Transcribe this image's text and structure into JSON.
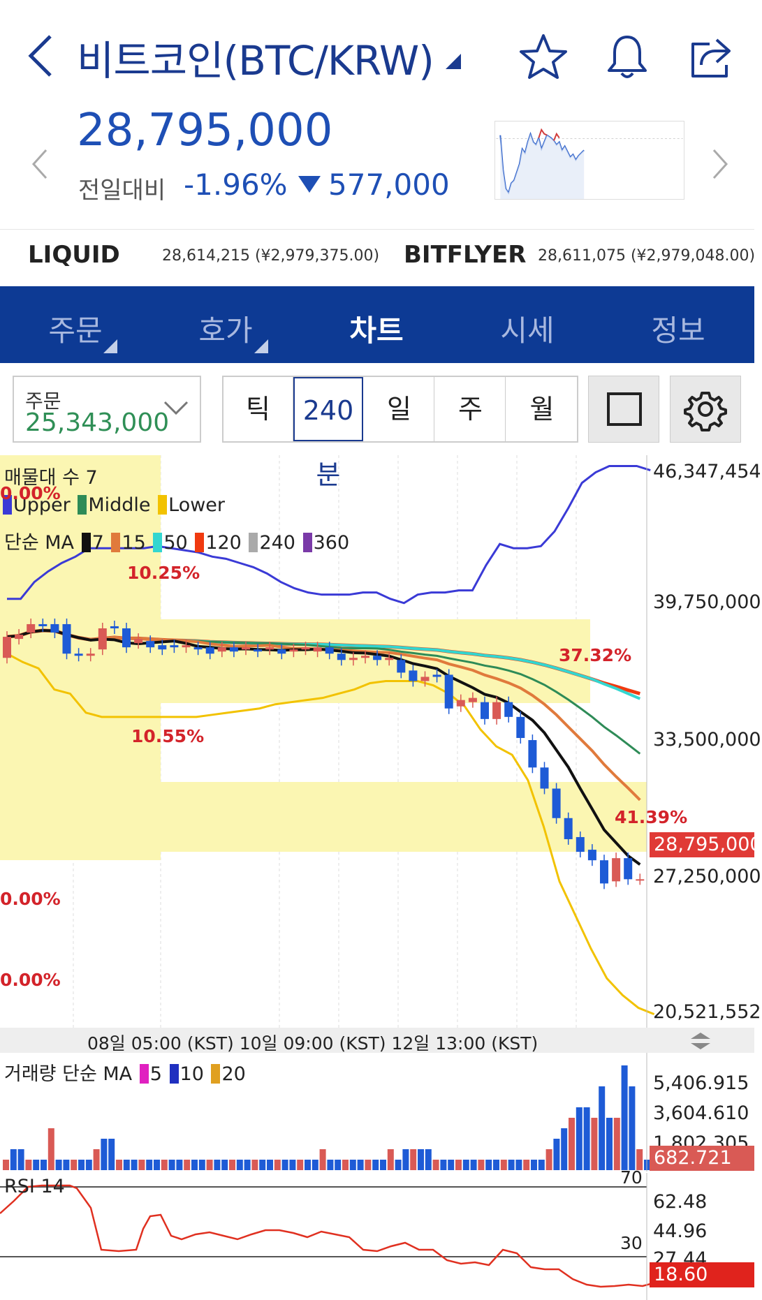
{
  "header": {
    "title": "비트코인(BTC/KRW)",
    "icons": [
      "back-chevron-icon",
      "star-icon",
      "bell-icon",
      "share-icon"
    ]
  },
  "price": {
    "current": "28,795,000",
    "change_label": "전일대비",
    "change_pct": "-1.96%",
    "change_amt": "577,000",
    "change_color": "#1e4fb5"
  },
  "exchanges": [
    {
      "name": "LIQUID",
      "value": "28,614,215 (¥2,979,375.00)"
    },
    {
      "name": "BITFLYER",
      "value": "28,611,075 (¥2,979,048.00)"
    }
  ],
  "tabs": [
    {
      "label": "주문",
      "active": false
    },
    {
      "label": "호가",
      "active": false
    },
    {
      "label": "차트",
      "active": true
    },
    {
      "label": "시세",
      "active": false
    },
    {
      "label": "정보",
      "active": false
    }
  ],
  "toolbar": {
    "order_label": "주문",
    "order_value": "25,343,000",
    "periods": [
      "틱",
      "240분",
      "일",
      "주",
      "월"
    ],
    "selected_period": "240분"
  },
  "main_chart": {
    "legend_title": "매물대 수 7",
    "bb_legend": [
      "Upper",
      "Middle",
      "Lower"
    ],
    "ma_legend_title": "단순 MA",
    "ma_legend": [
      "7",
      "15",
      "50",
      "120",
      "240",
      "360"
    ],
    "y_labels": [
      "46,347,454",
      "39,750,000",
      "33,500,000",
      "27,250,000",
      "20,521,552"
    ],
    "current_price_tag": "28,795,000",
    "pct_labels": [
      "0.00%",
      "10.25%",
      "10.55%",
      "37.32%",
      "41.39%",
      "0.00%",
      "0.00%"
    ],
    "x_labels": "08일 05:00 (KST) 10일 09:00 (KST) 12일 13:00 (KST)"
  },
  "volume": {
    "legend_title": "거래량 단순 MA",
    "ma_legend": [
      "5",
      "10",
      "20"
    ],
    "y_labels": [
      "5,406.915",
      "3,604.610",
      "1,802.305"
    ],
    "current_tag": "682.721"
  },
  "rsi": {
    "legend_title": "RSI 14",
    "levels": [
      "70",
      "30"
    ],
    "y_labels": [
      "62.48",
      "44.96",
      "27.44"
    ],
    "current_tag": "18.60"
  },
  "colors": {
    "tab_bg": "#0d3a94",
    "up": "#d95a55",
    "down": "#1e5bd6",
    "bb_upper": "#3a3ad6",
    "bb_middle": "#2e8b57",
    "bb_lower": "#f2c200",
    "ma7": "#111111",
    "ma15": "#e07a3c",
    "ma50": "#33d6d0",
    "ma120": "#f03a10",
    "ma240": "#aaaaaa",
    "ma360": "#7a3aa8"
  },
  "chart_data": {
    "type": "line",
    "title": "",
    "candles": [
      {
        "o": 37.4,
        "c": 38.4
      },
      {
        "o": 38.3,
        "c": 38.5
      },
      {
        "o": 38.6,
        "c": 39.0
      },
      {
        "o": 39.0,
        "c": 38.9
      },
      {
        "o": 39.0,
        "c": 38.6
      },
      {
        "o": 39.0,
        "c": 37.6
      },
      {
        "o": 37.6,
        "c": 37.5
      },
      {
        "o": 37.5,
        "c": 37.6
      },
      {
        "o": 37.8,
        "c": 38.8
      },
      {
        "o": 38.9,
        "c": 38.8
      },
      {
        "o": 38.8,
        "c": 37.9
      },
      {
        "o": 38.1,
        "c": 38.3
      },
      {
        "o": 38.2,
        "c": 37.9
      },
      {
        "o": 38.0,
        "c": 37.8
      },
      {
        "o": 38.0,
        "c": 37.9
      },
      {
        "o": 37.9,
        "c": 38.0
      },
      {
        "o": 37.9,
        "c": 37.8
      },
      {
        "o": 37.9,
        "c": 37.6
      },
      {
        "o": 37.7,
        "c": 37.9
      },
      {
        "o": 37.9,
        "c": 37.7
      },
      {
        "o": 37.8,
        "c": 37.9
      },
      {
        "o": 37.8,
        "c": 37.7
      },
      {
        "o": 37.8,
        "c": 37.9
      },
      {
        "o": 37.8,
        "c": 37.6
      },
      {
        "o": 37.7,
        "c": 37.8
      },
      {
        "o": 37.8,
        "c": 37.9
      },
      {
        "o": 37.7,
        "c": 37.9
      },
      {
        "o": 37.9,
        "c": 37.6
      },
      {
        "o": 37.6,
        "c": 37.3
      },
      {
        "o": 37.3,
        "c": 37.4
      },
      {
        "o": 37.4,
        "c": 37.5
      },
      {
        "o": 37.5,
        "c": 37.3
      },
      {
        "o": 37.3,
        "c": 37.4
      },
      {
        "o": 37.3,
        "c": 36.7
      },
      {
        "o": 36.8,
        "c": 36.3
      },
      {
        "o": 36.3,
        "c": 36.5
      },
      {
        "o": 36.6,
        "c": 36.5
      },
      {
        "o": 36.6,
        "c": 35.0
      },
      {
        "o": 35.1,
        "c": 35.4
      },
      {
        "o": 35.3,
        "c": 35.5
      },
      {
        "o": 35.3,
        "c": 34.5
      },
      {
        "o": 34.5,
        "c": 35.3
      },
      {
        "o": 35.3,
        "c": 34.6
      },
      {
        "o": 34.6,
        "c": 33.6
      },
      {
        "o": 33.5,
        "c": 32.2
      },
      {
        "o": 32.2,
        "c": 31.2
      },
      {
        "o": 31.2,
        "c": 29.8
      },
      {
        "o": 29.8,
        "c": 28.8
      },
      {
        "o": 28.9,
        "c": 28.2
      },
      {
        "o": 28.3,
        "c": 27.8
      },
      {
        "o": 27.8,
        "c": 26.7
      },
      {
        "o": 26.8,
        "c": 27.9
      },
      {
        "o": 27.9,
        "c": 26.9
      },
      {
        "o": 26.9,
        "c": 26.9
      }
    ],
    "price_unit": "millions KRW",
    "ylim": [
      20.52,
      46.35
    ],
    "bb_upper": [
      40.2,
      40.2,
      41.0,
      41.5,
      41.9,
      42.2,
      42.6,
      42.6,
      42.6,
      42.6,
      42.6,
      42.7,
      42.6,
      42.5,
      42.4,
      42.2,
      42.1,
      41.9,
      41.7,
      41.4,
      41.0,
      40.7,
      40.5,
      40.4,
      40.4,
      40.4,
      40.5,
      40.5,
      40.2,
      40.0,
      40.4,
      40.5,
      40.5,
      40.6,
      40.6,
      41.8,
      42.8,
      42.6,
      42.6,
      42.7,
      43.4,
      44.5,
      45.7,
      46.2,
      46.5,
      46.5,
      46.5,
      46.3
    ],
    "bb_lower": [
      37.6,
      37.2,
      36.9,
      35.9,
      35.7,
      34.8,
      34.6,
      34.6,
      34.6,
      34.6,
      34.6,
      34.6,
      34.6,
      34.7,
      34.8,
      34.9,
      35.0,
      35.2,
      35.3,
      35.4,
      35.5,
      35.7,
      35.9,
      36.2,
      36.3,
      36.3,
      36.3,
      36.1,
      35.7,
      35.1,
      34.0,
      33.2,
      32.8,
      31.6,
      29.4,
      26.8,
      25.2,
      23.6,
      22.2,
      21.4,
      20.8,
      20.5
    ]
  }
}
